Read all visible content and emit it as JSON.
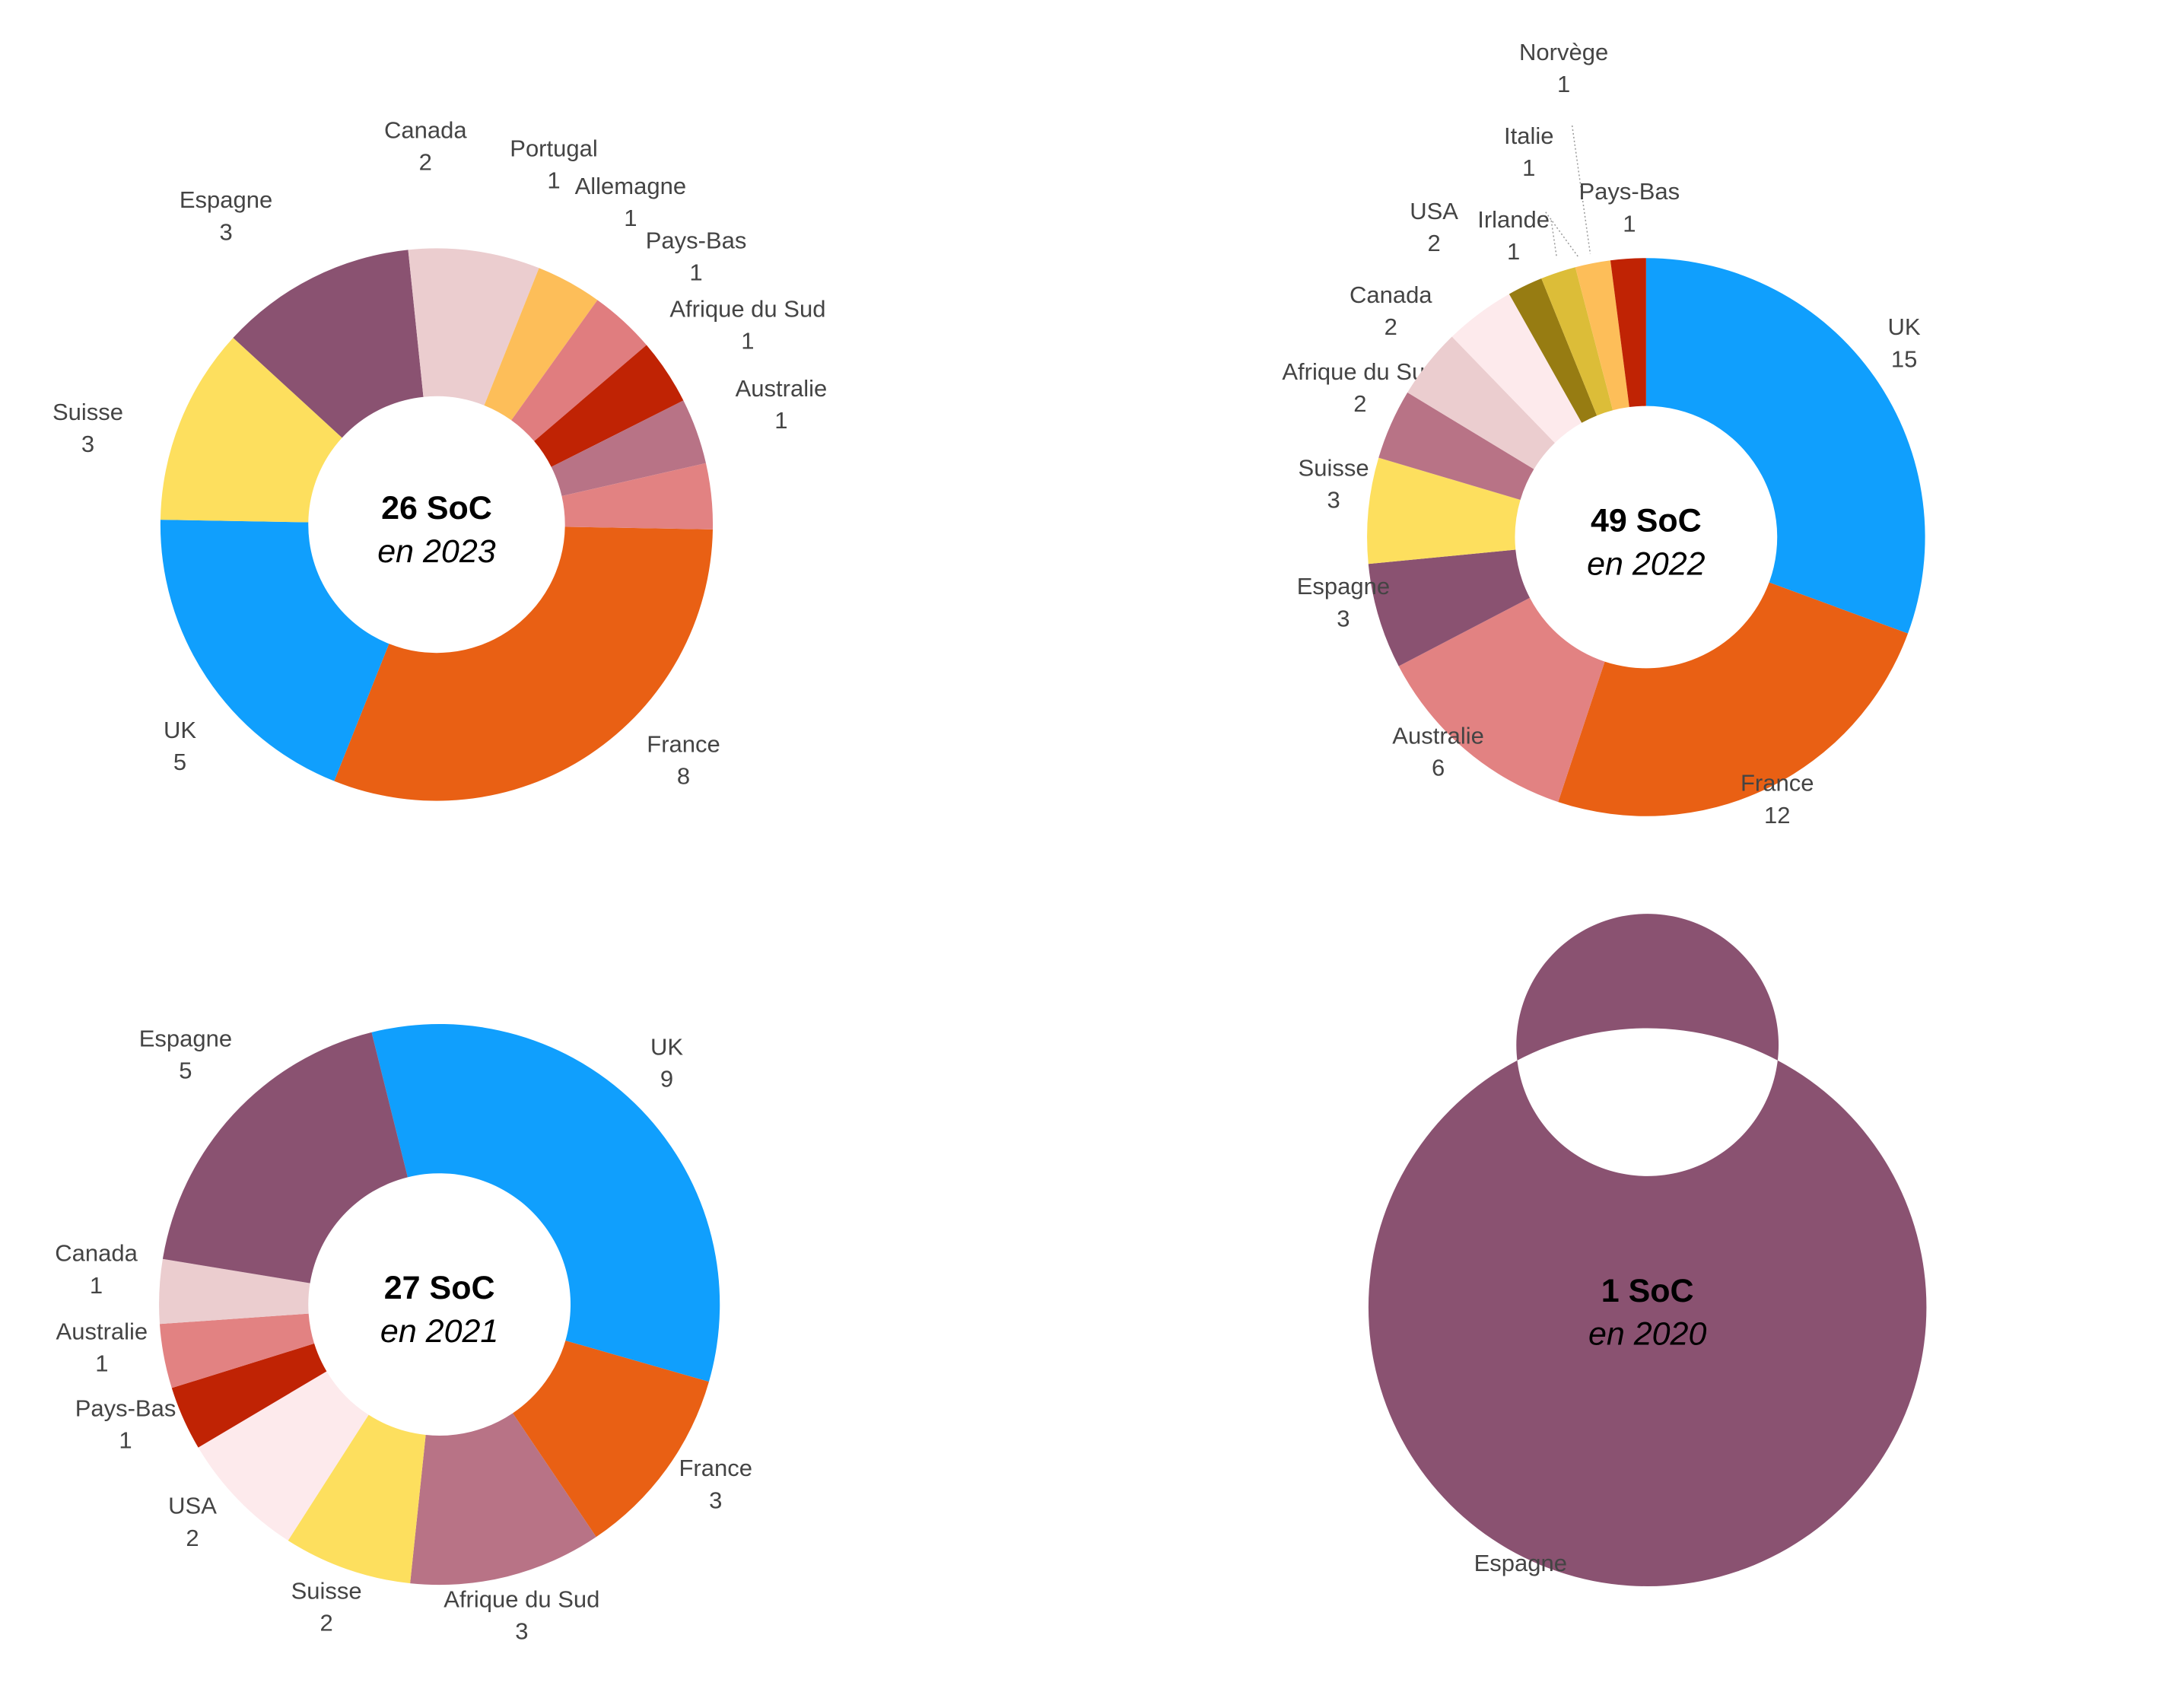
{
  "colors": {
    "UK": "#109ffd",
    "France": "#e96014",
    "Suisse": "#fddf5e",
    "Espagne": "#8a5271",
    "Canada": "#ebcdcf",
    "Portugal": "#fdbe59",
    "Allemagne": "#e07d7f",
    "Pays-Bas": "#c02304",
    "Afrique du Sud": "#b87386",
    "Australie": "#e28282",
    "USA": "#fdeaec",
    "Irlande": "#977c12",
    "Italie": "#dcbd38",
    "Norvège": "#fdbe59"
  },
  "chart_data": [
    {
      "type": "pie",
      "variant": "donut",
      "center_title": "26 SoC",
      "center_subtitle": "en 2023",
      "slices": [
        {
          "label": "France",
          "value": 8
        },
        {
          "label": "UK",
          "value": 5
        },
        {
          "label": "Suisse",
          "value": 3
        },
        {
          "label": "Espagne",
          "value": 3
        },
        {
          "label": "Canada",
          "value": 2
        },
        {
          "label": "Portugal",
          "value": 1
        },
        {
          "label": "Allemagne",
          "value": 1
        },
        {
          "label": "Pays-Bas",
          "value": 1
        },
        {
          "label": "Afrique du Sud",
          "value": 1
        },
        {
          "label": "Australie",
          "value": 1
        }
      ]
    },
    {
      "type": "pie",
      "variant": "donut",
      "center_title": "49 SoC",
      "center_subtitle": "en 2022",
      "slices": [
        {
          "label": "UK",
          "value": 15
        },
        {
          "label": "France",
          "value": 12
        },
        {
          "label": "Australie",
          "value": 6
        },
        {
          "label": "Espagne",
          "value": 3
        },
        {
          "label": "Suisse",
          "value": 3
        },
        {
          "label": "Afrique du Sud",
          "value": 2
        },
        {
          "label": "Canada",
          "value": 2
        },
        {
          "label": "USA",
          "value": 2
        },
        {
          "label": "Irlande",
          "value": 1
        },
        {
          "label": "Italie",
          "value": 1
        },
        {
          "label": "Norvège",
          "value": 1
        },
        {
          "label": "Pays-Bas",
          "value": 1
        }
      ]
    },
    {
      "type": "pie",
      "variant": "donut",
      "center_title": "27 SoC",
      "center_subtitle": "en 2021",
      "slices": [
        {
          "label": "UK",
          "value": 9
        },
        {
          "label": "France",
          "value": 3
        },
        {
          "label": "Afrique du Sud",
          "value": 3
        },
        {
          "label": "Suisse",
          "value": 2
        },
        {
          "label": "USA",
          "value": 2
        },
        {
          "label": "Pays-Bas",
          "value": 1
        },
        {
          "label": "Australie",
          "value": 1
        },
        {
          "label": "Canada",
          "value": 1
        },
        {
          "label": "Espagne",
          "value": 5
        }
      ]
    },
    {
      "type": "pie",
      "variant": "donut",
      "center_title": "1 SoC",
      "center_subtitle": "en 2020",
      "slices": [
        {
          "label": "Espagne",
          "value": 1
        }
      ]
    }
  ]
}
